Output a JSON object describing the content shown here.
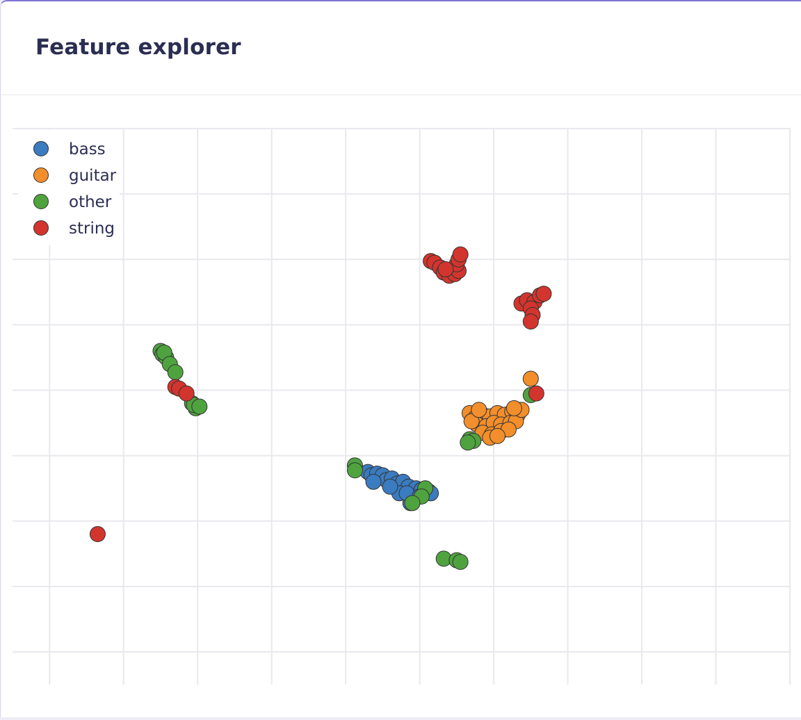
{
  "page": {
    "title": "Feature explorer"
  },
  "chart_data": {
    "type": "scatter",
    "title": "",
    "xlabel": "",
    "ylabel": "",
    "xlim": [
      -11,
      10
    ],
    "ylim": [
      -9,
      8
    ],
    "grid": true,
    "legend_position": "top-left",
    "colors": {
      "bass": "#3b7bbf",
      "guitar": "#f28e2b",
      "other": "#4fa33f",
      "string": "#d2352e"
    },
    "series": [
      {
        "name": "bass",
        "color": "#3b7bbf",
        "points": [
          [
            -1.4,
            -2.5
          ],
          [
            -1.3,
            -2.6
          ],
          [
            -1.15,
            -2.55
          ],
          [
            -1.0,
            -2.6
          ],
          [
            -0.9,
            -2.75
          ],
          [
            -0.75,
            -2.7
          ],
          [
            -0.6,
            -2.85
          ],
          [
            -0.45,
            -2.8
          ],
          [
            -0.3,
            -2.95
          ],
          [
            -0.1,
            -3.0
          ],
          [
            0.05,
            -3.05
          ],
          [
            0.25,
            -3.1
          ],
          [
            -0.2,
            -3.3
          ],
          [
            -0.25,
            -3.45
          ],
          [
            -0.55,
            -3.15
          ],
          [
            -0.8,
            -2.95
          ],
          [
            -1.25,
            -2.8
          ],
          [
            -0.35,
            -3.15
          ],
          [
            0.0,
            -3.25
          ],
          [
            0.3,
            -3.15
          ]
        ]
      },
      {
        "name": "guitar",
        "color": "#f28e2b",
        "points": [
          [
            1.35,
            -0.7
          ],
          [
            1.5,
            -0.85
          ],
          [
            1.7,
            -0.75
          ],
          [
            1.9,
            -0.8
          ],
          [
            2.1,
            -0.7
          ],
          [
            2.3,
            -0.75
          ],
          [
            2.5,
            -0.65
          ],
          [
            2.65,
            -0.75
          ],
          [
            1.55,
            -1.05
          ],
          [
            1.8,
            -1.1
          ],
          [
            2.0,
            -1.0
          ],
          [
            2.2,
            -1.05
          ],
          [
            2.45,
            -1.0
          ],
          [
            2.6,
            -0.95
          ],
          [
            1.7,
            -1.3
          ],
          [
            1.95,
            -1.35
          ],
          [
            2.2,
            -1.25
          ],
          [
            2.4,
            -1.2
          ],
          [
            1.9,
            -1.45
          ],
          [
            2.1,
            -1.4
          ],
          [
            1.4,
            -0.95
          ],
          [
            2.75,
            -0.6
          ],
          [
            2.55,
            -0.55
          ],
          [
            1.6,
            -0.6
          ],
          [
            3.0,
            0.35
          ]
        ]
      },
      {
        "name": "other",
        "color": "#4fa33f",
        "points": [
          [
            -7.0,
            1.2
          ],
          [
            -6.95,
            1.1
          ],
          [
            -6.85,
            1.0
          ],
          [
            -6.9,
            1.15
          ],
          [
            -6.75,
            0.8
          ],
          [
            -6.6,
            0.55
          ],
          [
            -6.15,
            -0.4
          ],
          [
            -6.05,
            -0.55
          ],
          [
            -6.1,
            -0.45
          ],
          [
            -5.95,
            -0.5
          ],
          [
            -1.75,
            -2.3
          ],
          [
            -1.75,
            -2.45
          ],
          [
            0.15,
            -3.0
          ],
          [
            0.05,
            -3.25
          ],
          [
            -0.2,
            -3.45
          ],
          [
            1.35,
            -1.5
          ],
          [
            1.45,
            -1.55
          ],
          [
            1.3,
            -1.6
          ],
          [
            0.65,
            -5.15
          ],
          [
            1.0,
            -5.2
          ],
          [
            1.1,
            -5.25
          ],
          [
            3.0,
            -0.15
          ]
        ]
      },
      {
        "name": "string",
        "color": "#d2352e",
        "points": [
          [
            0.3,
            3.95
          ],
          [
            0.4,
            3.9
          ],
          [
            0.55,
            3.75
          ],
          [
            0.65,
            3.6
          ],
          [
            0.8,
            3.5
          ],
          [
            0.95,
            3.55
          ],
          [
            1.05,
            3.65
          ],
          [
            1.0,
            3.85
          ],
          [
            1.05,
            4.0
          ],
          [
            1.1,
            4.15
          ],
          [
            0.7,
            3.7
          ],
          [
            2.75,
            2.65
          ],
          [
            2.9,
            2.75
          ],
          [
            3.1,
            2.7
          ],
          [
            3.25,
            2.9
          ],
          [
            3.35,
            2.95
          ],
          [
            3.0,
            2.5
          ],
          [
            3.05,
            2.3
          ],
          [
            3.0,
            2.1
          ],
          [
            -6.6,
            0.1
          ],
          [
            -6.5,
            0.05
          ],
          [
            -6.3,
            -0.1
          ],
          [
            3.15,
            -0.1
          ],
          [
            -8.7,
            -4.4
          ]
        ]
      }
    ]
  }
}
